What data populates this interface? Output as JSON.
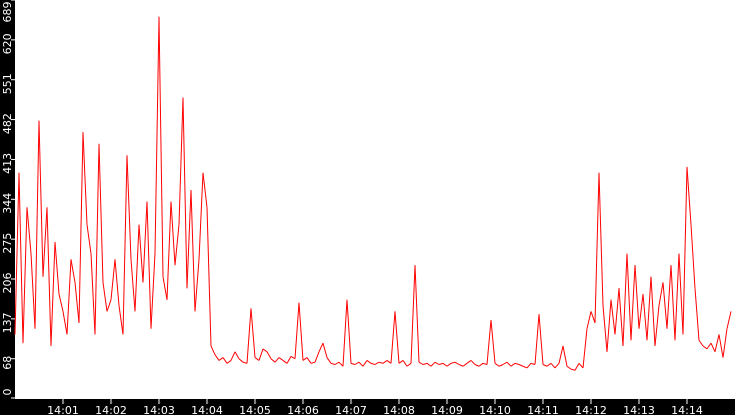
{
  "chart_data": {
    "type": "line",
    "title": "",
    "xlabel": "",
    "ylabel": "",
    "ylim": [
      0,
      689
    ],
    "y_ticks": [
      "0",
      "68",
      "137",
      "206",
      "275",
      "344",
      "413",
      "482",
      "551",
      "620",
      "689"
    ],
    "x_ticks": [
      "14:01",
      "14:02",
      "14:03",
      "14:04",
      "14:05",
      "14:06",
      "14:07",
      "14:08",
      "14:09",
      "14:10",
      "14:11",
      "14:12",
      "14:13",
      "14:14"
    ],
    "grid": false,
    "colors": {
      "series": "#ff0000",
      "axis_background": "#000000",
      "axis_text": "#ffffff",
      "plot_background": "#ffffff"
    },
    "series": [
      {
        "x": [
          "14:00:00",
          "14:00:05",
          "14:00:10",
          "14:00:15",
          "14:00:20",
          "14:00:25",
          "14:00:30",
          "14:00:35",
          "14:00:40",
          "14:00:45",
          "14:00:50",
          "14:00:55",
          "14:01:00",
          "14:01:05",
          "14:01:10",
          "14:01:15",
          "14:01:20",
          "14:01:25",
          "14:01:30",
          "14:01:35",
          "14:01:40",
          "14:01:45",
          "14:01:50",
          "14:01:55",
          "14:02:00",
          "14:02:05",
          "14:02:10",
          "14:02:15",
          "14:02:20",
          "14:02:25",
          "14:02:30",
          "14:02:35",
          "14:02:40",
          "14:02:45",
          "14:02:50",
          "14:02:55",
          "14:03:00",
          "14:03:05",
          "14:03:10",
          "14:03:15",
          "14:03:20",
          "14:03:25",
          "14:03:30",
          "14:03:35",
          "14:03:40",
          "14:03:45",
          "14:03:50",
          "14:03:55",
          "14:04:00",
          "14:04:05",
          "14:04:10",
          "14:04:15",
          "14:04:20",
          "14:04:25",
          "14:04:30",
          "14:04:35",
          "14:04:40",
          "14:04:45",
          "14:04:50",
          "14:04:55",
          "14:05:00",
          "14:05:05",
          "14:05:10",
          "14:05:15",
          "14:05:20",
          "14:05:25",
          "14:05:30",
          "14:05:35",
          "14:05:40",
          "14:05:45",
          "14:05:50",
          "14:05:55",
          "14:06:00",
          "14:06:05",
          "14:06:10",
          "14:06:15",
          "14:06:20",
          "14:06:25",
          "14:06:30",
          "14:06:35",
          "14:06:40",
          "14:06:45",
          "14:06:50",
          "14:06:55",
          "14:07:00",
          "14:07:05",
          "14:07:10",
          "14:07:15",
          "14:07:20",
          "14:07:25",
          "14:07:30",
          "14:07:35",
          "14:07:40",
          "14:07:45",
          "14:07:50",
          "14:07:55",
          "14:08:00",
          "14:08:05",
          "14:08:10",
          "14:08:15",
          "14:08:20",
          "14:08:25",
          "14:08:30",
          "14:08:35",
          "14:08:40",
          "14:08:45",
          "14:08:50",
          "14:08:55",
          "14:09:00",
          "14:09:05",
          "14:09:10",
          "14:09:15",
          "14:09:20",
          "14:09:25",
          "14:09:30",
          "14:09:35",
          "14:09:40",
          "14:09:45",
          "14:09:50",
          "14:09:55",
          "14:10:00",
          "14:10:05",
          "14:10:10",
          "14:10:15",
          "14:10:20",
          "14:10:25",
          "14:10:30",
          "14:10:35",
          "14:10:40",
          "14:10:45",
          "14:10:50",
          "14:10:55",
          "14:11:00",
          "14:11:05",
          "14:11:10",
          "14:11:15",
          "14:11:20",
          "14:11:25",
          "14:11:30",
          "14:11:35",
          "14:11:40",
          "14:11:45",
          "14:11:50",
          "14:11:55",
          "14:12:00",
          "14:12:05",
          "14:12:10",
          "14:12:15",
          "14:12:20",
          "14:12:25",
          "14:12:30",
          "14:12:35",
          "14:12:40",
          "14:12:45",
          "14:12:50",
          "14:12:55",
          "14:13:00",
          "14:13:05",
          "14:13:10",
          "14:13:15",
          "14:13:20",
          "14:13:25",
          "14:13:30",
          "14:13:35",
          "14:13:40",
          "14:13:45",
          "14:13:50",
          "14:13:55",
          "14:14:00",
          "14:14:05",
          "14:14:10",
          "14:14:15",
          "14:14:20",
          "14:14:25",
          "14:14:30",
          "14:14:35",
          "14:14:40",
          "14:14:45",
          "14:14:50",
          "14:14:55"
        ],
        "values": [
          110,
          390,
          95,
          330,
          250,
          120,
          480,
          210,
          330,
          90,
          270,
          180,
          150,
          110,
          240,
          200,
          130,
          460,
          300,
          250,
          110,
          440,
          200,
          150,
          170,
          240,
          160,
          110,
          420,
          240,
          150,
          300,
          200,
          340,
          120,
          250,
          660,
          210,
          170,
          340,
          230,
          300,
          520,
          190,
          360,
          150,
          240,
          390,
          330,
          90,
          75,
          65,
          70,
          60,
          65,
          80,
          68,
          62,
          60,
          155,
          70,
          65,
          85,
          80,
          68,
          62,
          70,
          65,
          60,
          72,
          68,
          165,
          65,
          70,
          60,
          62,
          80,
          95,
          70,
          60,
          58,
          62,
          55,
          170,
          60,
          58,
          62,
          55,
          65,
          60,
          58,
          62,
          60,
          65,
          60,
          150,
          60,
          65,
          55,
          60,
          230,
          62,
          58,
          60,
          55,
          62,
          58,
          60,
          55,
          60,
          62,
          58,
          55,
          60,
          65,
          58,
          55,
          60,
          58,
          135,
          60,
          55,
          58,
          62,
          55,
          60,
          58,
          55,
          52,
          60,
          58,
          145,
          58,
          55,
          60,
          52,
          60,
          90,
          55,
          50,
          48,
          60,
          52,
          120,
          150,
          130,
          390,
          160,
          80,
          170,
          110,
          190,
          90,
          250,
          100,
          230,
          120,
          180,
          100,
          210,
          90,
          160,
          200,
          120,
          230,
          100,
          250,
          110,
          400,
          300,
          190,
          100,
          90,
          85,
          95,
          80,
          110,
          70,
          120,
          150
        ]
      }
    ]
  }
}
